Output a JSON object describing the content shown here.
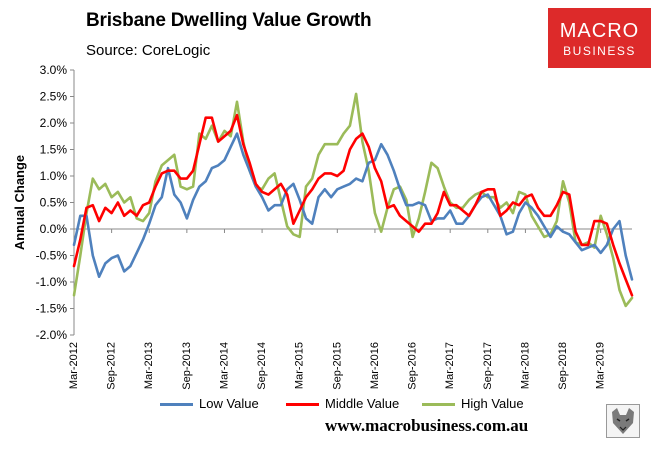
{
  "chart_data": {
    "type": "line",
    "title": "Brisbane Dwelling Value Growth",
    "subtitle": "Source: CoreLogic",
    "ylabel": "Annual Change",
    "xlabel": "",
    "ylim": [
      -2.0,
      3.0
    ],
    "y_ticks": [
      "3.0%",
      "2.5%",
      "2.0%",
      "1.5%",
      "1.0%",
      "0.5%",
      "0.0%",
      "-0.5%",
      "-1.0%",
      "-1.5%",
      "-2.0%"
    ],
    "x_tick_labels": [
      "Mar-2012",
      "Sep-2012",
      "Mar-2013",
      "Sep-2013",
      "Mar-2014",
      "Sep-2014",
      "Mar-2015",
      "Sep-2015",
      "Mar-2016",
      "Sep-2016",
      "Mar-2017",
      "Sep-2017",
      "Mar-2018",
      "Sep-2018",
      "Mar-2019"
    ],
    "x_start": "Mar-2012",
    "x_end": "May-2019",
    "grid": false,
    "legend_position": "bottom",
    "series": [
      {
        "name": "Low Value",
        "color": "#4f81bd",
        "values": [
          -0.3,
          0.25,
          0.25,
          -0.5,
          -0.9,
          -0.65,
          -0.55,
          -0.5,
          -0.8,
          -0.7,
          -0.45,
          -0.2,
          0.1,
          0.45,
          0.6,
          1.15,
          0.65,
          0.5,
          0.2,
          0.55,
          0.8,
          0.9,
          1.15,
          1.2,
          1.3,
          1.55,
          1.8,
          1.4,
          1.1,
          0.8,
          0.6,
          0.35,
          0.45,
          0.45,
          0.75,
          0.85,
          0.55,
          0.2,
          0.1,
          0.6,
          0.75,
          0.6,
          0.75,
          0.8,
          0.85,
          0.95,
          0.9,
          1.25,
          1.3,
          1.6,
          1.4,
          1.1,
          0.75,
          0.45,
          0.45,
          0.5,
          0.45,
          0.15,
          0.2,
          0.2,
          0.35,
          0.1,
          0.1,
          0.25,
          0.45,
          0.6,
          0.65,
          0.45,
          0.25,
          -0.1,
          -0.05,
          0.3,
          0.5,
          0.4,
          0.25,
          0.05,
          -0.15,
          0.05,
          -0.05,
          -0.1,
          -0.25,
          -0.4,
          -0.35,
          -0.3,
          -0.45,
          -0.3,
          0.0,
          0.15,
          -0.5,
          -0.95
        ]
      },
      {
        "name": "Middle Value",
        "color": "#ff0000",
        "values": [
          -0.7,
          -0.2,
          0.4,
          0.45,
          0.15,
          0.4,
          0.3,
          0.5,
          0.25,
          0.35,
          0.25,
          0.45,
          0.5,
          0.8,
          1.05,
          1.1,
          1.1,
          0.95,
          0.95,
          1.1,
          1.6,
          2.1,
          2.1,
          1.65,
          1.75,
          1.85,
          2.15,
          1.6,
          1.25,
          0.85,
          0.7,
          0.65,
          0.75,
          0.85,
          0.65,
          0.1,
          0.35,
          0.6,
          0.75,
          0.95,
          1.05,
          1.05,
          1.0,
          1.1,
          1.5,
          1.7,
          1.8,
          1.55,
          1.15,
          0.9,
          0.4,
          0.45,
          0.25,
          0.15,
          0.05,
          -0.05,
          0.1,
          0.1,
          0.3,
          0.7,
          0.45,
          0.45,
          0.35,
          0.25,
          0.45,
          0.7,
          0.75,
          0.75,
          0.25,
          0.35,
          0.5,
          0.45,
          0.6,
          0.65,
          0.4,
          0.25,
          0.25,
          0.45,
          0.7,
          0.65,
          -0.05,
          -0.3,
          -0.3,
          0.15,
          0.15,
          0.1,
          -0.3,
          -0.65,
          -0.95,
          -1.25
        ]
      },
      {
        "name": "High Value",
        "color": "#9bbb59",
        "values": [
          -1.25,
          -0.5,
          0.3,
          0.95,
          0.75,
          0.85,
          0.6,
          0.7,
          0.5,
          0.6,
          0.2,
          0.15,
          0.3,
          0.9,
          1.2,
          1.3,
          1.4,
          0.8,
          0.75,
          0.8,
          1.8,
          1.7,
          1.95,
          1.65,
          1.85,
          1.75,
          2.4,
          1.65,
          1.1,
          0.8,
          0.75,
          0.95,
          1.05,
          0.55,
          0.05,
          -0.1,
          -0.15,
          0.8,
          0.95,
          1.4,
          1.6,
          1.6,
          1.6,
          1.8,
          1.95,
          2.55,
          1.65,
          1.1,
          0.3,
          -0.05,
          0.4,
          0.75,
          0.8,
          0.55,
          -0.15,
          0.2,
          0.7,
          1.25,
          1.15,
          0.8,
          0.5,
          0.4,
          0.4,
          0.55,
          0.65,
          0.7,
          0.6,
          0.6,
          0.4,
          0.5,
          0.3,
          0.7,
          0.65,
          0.25,
          0.05,
          -0.15,
          -0.1,
          0.15,
          0.9,
          0.5,
          -0.25,
          -0.3,
          -0.25,
          -0.35,
          0.25,
          -0.1,
          -0.55,
          -1.15,
          -1.45,
          -1.3
        ]
      }
    ]
  },
  "logo": {
    "top": "MACRO",
    "bottom": "BUSINESS"
  },
  "website": "www.macrobusiness.com.au",
  "icons": {
    "logo_badge": "wolf-icon"
  }
}
